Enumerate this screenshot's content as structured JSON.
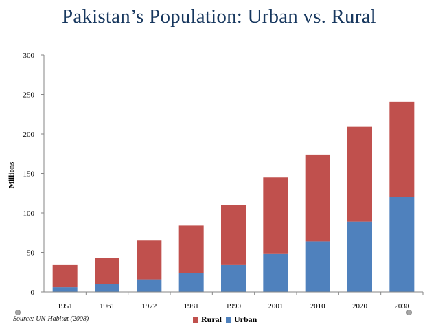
{
  "colors": {
    "rural": "#c0504d",
    "urban": "#4f81bd",
    "title": "#17375e",
    "axis": "#868686"
  },
  "source": "Source: UN-Habitat (2008)",
  "decor": {
    "dot_icon": "circle-bullet"
  },
  "chart_data": {
    "type": "bar",
    "stacked": true,
    "title": "Pakistan’s Population: Urban vs. Rural",
    "xlabel": "",
    "ylabel": "Millions",
    "ylim": [
      0,
      300
    ],
    "yticks": [
      0,
      50,
      100,
      150,
      200,
      250,
      300
    ],
    "grid": false,
    "legend": "bottom",
    "categories": [
      "1951",
      "1961",
      "1972",
      "1981",
      "1990",
      "2001",
      "2010",
      "2020",
      "2030"
    ],
    "series": [
      {
        "name": "Urban",
        "values": [
          6,
          10,
          16,
          24,
          34,
          48,
          64,
          89,
          120
        ]
      },
      {
        "name": "Rural",
        "values": [
          28,
          33,
          49,
          60,
          76,
          97,
          110,
          120,
          121
        ]
      }
    ],
    "legend_order": [
      "Rural",
      "Urban"
    ]
  }
}
